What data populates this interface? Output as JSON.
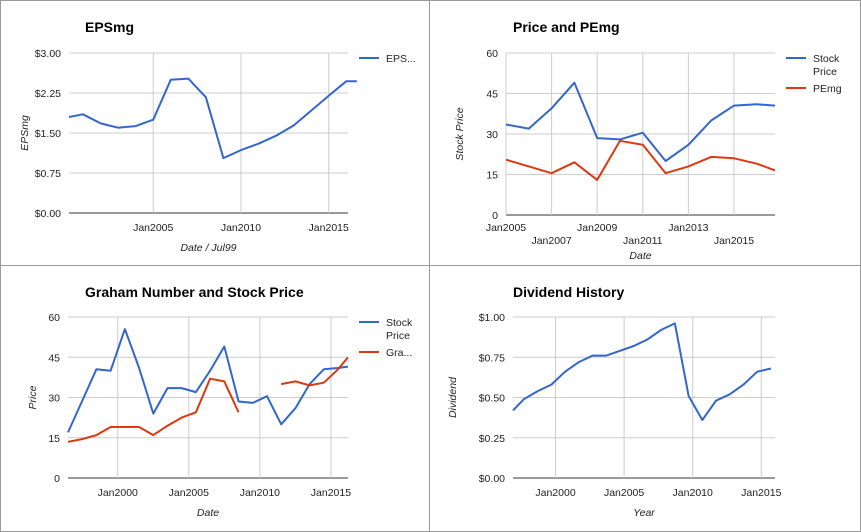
{
  "chart_data": [
    {
      "type": "line",
      "title": "EPSmg",
      "xlabel": "Date / Jul99",
      "ylabel": "EPSmg",
      "xlim": [
        2000.2,
        2016.1
      ],
      "ylim": [
        0,
        3
      ],
      "yticks": [
        "$0.00",
        "$0.75",
        "$1.50",
        "$2.25",
        "$3.00"
      ],
      "xticks": [
        {
          "label": "Jan2005",
          "value": 2005
        },
        {
          "label": "Jan2010",
          "value": 2010
        },
        {
          "label": "Jan2015",
          "value": 2015
        }
      ],
      "series": [
        {
          "name": "EPS...",
          "color": "#3366cc",
          "x": [
            2000.2,
            2001.0,
            2002.0,
            2003.0,
            2004.0,
            2005.0,
            2006.0,
            2007.0,
            2008.0,
            2009.0,
            2010.0,
            2011.0,
            2012.0,
            2013.0,
            2014.0,
            2015.0,
            2016.0,
            2016.6
          ],
          "y": [
            1.8,
            1.85,
            1.68,
            1.6,
            1.63,
            1.75,
            2.5,
            2.52,
            2.17,
            1.03,
            1.18,
            1.3,
            1.45,
            1.64,
            1.92,
            2.2,
            2.47,
            2.47
          ]
        }
      ],
      "legend": "right",
      "grid": true
    },
    {
      "type": "line",
      "title": "Price and PEmg",
      "xlabel": "Date",
      "ylabel": "Stock Price",
      "xlim": [
        2005.0,
        2016.8
      ],
      "ylim": [
        0,
        60
      ],
      "yticks": [
        "0",
        "15",
        "30",
        "45",
        "60"
      ],
      "xticks": [
        {
          "label": "Jan2005",
          "value": 2005,
          "row": 0
        },
        {
          "label": "Jan2007",
          "value": 2007,
          "row": 1
        },
        {
          "label": "Jan2009",
          "value": 2009,
          "row": 0
        },
        {
          "label": "Jan2011",
          "value": 2011,
          "row": 1
        },
        {
          "label": "Jan2013",
          "value": 2013,
          "row": 0
        },
        {
          "label": "Jan2015",
          "value": 2015,
          "row": 1
        }
      ],
      "series": [
        {
          "name": "Stock Price",
          "color": "#3366cc",
          "x": [
            2005.0,
            2006.0,
            2007.0,
            2008.0,
            2009.0,
            2010.0,
            2011.0,
            2012.0,
            2013.0,
            2014.0,
            2015.0,
            2016.0,
            2016.8
          ],
          "y": [
            33.5,
            32.0,
            39.5,
            49.0,
            28.5,
            28.0,
            30.5,
            20.0,
            26.0,
            35.0,
            40.5,
            41.0,
            40.5
          ]
        },
        {
          "name": "PEmg",
          "color": "#dc3912",
          "x": [
            2005.0,
            2006.0,
            2007.0,
            2008.0,
            2009.0,
            2010.0,
            2011.0,
            2012.0,
            2013.0,
            2014.0,
            2015.0,
            2016.0,
            2016.8
          ],
          "y": [
            20.5,
            18.0,
            15.5,
            19.5,
            13.0,
            27.5,
            26.0,
            15.5,
            18.0,
            21.5,
            21.0,
            19.0,
            16.5
          ]
        }
      ],
      "legend": "right",
      "grid": true
    },
    {
      "type": "line",
      "title": "Graham Number and Stock Price",
      "xlabel": "Date",
      "ylabel": "Price",
      "xlim": [
        1996.5,
        2016.2
      ],
      "ylim": [
        0,
        60
      ],
      "yticks": [
        "0",
        "15",
        "30",
        "45",
        "60"
      ],
      "xticks": [
        {
          "label": "Jan2000",
          "value": 2000
        },
        {
          "label": "Jan2005",
          "value": 2005
        },
        {
          "label": "Jan2010",
          "value": 2010
        },
        {
          "label": "Jan2015",
          "value": 2015
        }
      ],
      "series": [
        {
          "name": "Stock Price",
          "color": "#3366cc",
          "x": [
            1996.5,
            1998.5,
            1999.5,
            2000.5,
            2001.5,
            2002.5,
            2003.5,
            2004.5,
            2005.5,
            2006.5,
            2007.5,
            2008.5,
            2009.5,
            2010.5,
            2011.5,
            2012.5,
            2013.5,
            2014.5,
            2015.5,
            2016.2
          ],
          "y": [
            17.0,
            40.5,
            40.0,
            55.5,
            41.0,
            24.0,
            33.5,
            33.5,
            32.0,
            40.0,
            49.0,
            28.5,
            28.0,
            30.5,
            20.0,
            26.0,
            35.0,
            40.5,
            41.0,
            41.5
          ]
        },
        {
          "name": "Gra...",
          "color": "#dc3912",
          "segments": [
            {
              "x": [
                1996.5,
                1997.5,
                1998.5,
                1999.5,
                2000.5,
                2001.5,
                2002.5,
                2003.5,
                2004.5,
                2005.5,
                2006.5,
                2007.5,
                2008.5
              ],
              "y": [
                13.5,
                14.5,
                16.0,
                19.0,
                19.0,
                19.0,
                16.0,
                19.5,
                22.5,
                24.5,
                37.0,
                36.0,
                24.5
              ]
            },
            {
              "x": [
                2011.5,
                2012.5,
                2013.5,
                2014.5,
                2015.5,
                2016.2
              ],
              "y": [
                35.0,
                36.0,
                34.5,
                35.5,
                40.5,
                45.0
              ]
            }
          ]
        }
      ],
      "legend": "right",
      "grid": true
    },
    {
      "type": "line",
      "title": "Dividend History",
      "xlabel": "Year",
      "ylabel": "Dividend",
      "xlim": [
        1996.9,
        2016.0
      ],
      "ylim": [
        0,
        1
      ],
      "yticks": [
        "$0.00",
        "$0.25",
        "$0.50",
        "$0.75",
        "$1.00"
      ],
      "xticks": [
        {
          "label": "Jan2000",
          "value": 2000
        },
        {
          "label": "Jan2005",
          "value": 2005
        },
        {
          "label": "Jan2010",
          "value": 2010
        },
        {
          "label": "Jan2015",
          "value": 2015
        }
      ],
      "series": [
        {
          "name": "Dividend",
          "color": "#3366cc",
          "x": [
            1996.9,
            1997.7,
            1998.7,
            1999.7,
            2000.7,
            2001.7,
            2002.7,
            2003.7,
            2004.7,
            2005.7,
            2006.7,
            2007.7,
            2008.7,
            2009.7,
            2010.7,
            2011.7,
            2012.7,
            2013.7,
            2014.7,
            2015.7
          ],
          "y": [
            0.42,
            0.49,
            0.54,
            0.58,
            0.66,
            0.72,
            0.76,
            0.76,
            0.79,
            0.82,
            0.86,
            0.92,
            0.96,
            0.51,
            0.36,
            0.48,
            0.52,
            0.58,
            0.66,
            0.68
          ]
        }
      ],
      "legend": "none",
      "grid": true
    }
  ]
}
